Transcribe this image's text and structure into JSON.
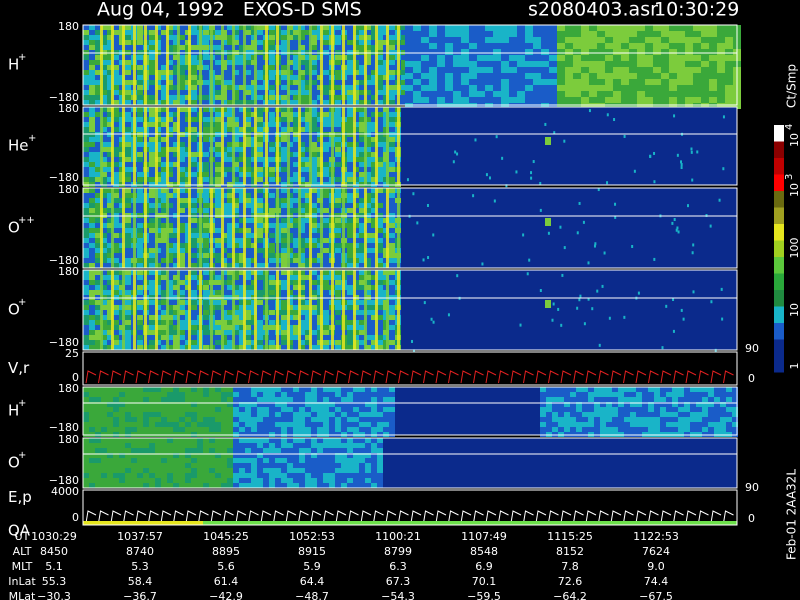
{
  "header": {
    "title": "Aug 04, 1992   EXOS-D SMS",
    "file": "s2080403.asr",
    "time": "10:30:29"
  },
  "panels": [
    {
      "ion": "H",
      "charge": "+",
      "top_tick": "180",
      "bottom_tick": "−180"
    },
    {
      "ion": "He",
      "charge": "+",
      "top_tick": "180",
      "bottom_tick": "−180"
    },
    {
      "ion": "O",
      "charge": "++",
      "top_tick": "180",
      "bottom_tick": "−180"
    },
    {
      "ion": "O",
      "charge": "+",
      "top_tick": "180",
      "bottom_tick": "−180"
    },
    {
      "ion": "V,r",
      "top_tick": "25",
      "bottom_tick": "0",
      "right_top": "90",
      "right_bottom": "0"
    },
    {
      "ion": "H",
      "charge": "+",
      "top_tick": "180",
      "bottom_tick": "−180"
    },
    {
      "ion": "O",
      "charge": "+",
      "top_tick": "180",
      "bottom_tick": "−180"
    },
    {
      "ion": "E,p",
      "ion2": "QA",
      "top_tick": "4000",
      "bottom_tick": "0",
      "right_top": "90",
      "right_bottom": "0"
    }
  ],
  "colorbar": {
    "unit": "Ct/Smp",
    "labels": [
      {
        "base": "10",
        "exp": "4"
      },
      {
        "base": "10",
        "exp": "3"
      },
      {
        "base": "100"
      },
      {
        "base": "10"
      },
      {
        "base": "1"
      }
    ]
  },
  "table": {
    "rows": [
      {
        "label": "UT",
        "values": [
          "1030:29",
          "1037:57",
          "1045:25",
          "1052:53",
          "1100:21",
          "1107:49",
          "1115:25",
          "1122:53"
        ]
      },
      {
        "label": "ALT",
        "values": [
          "8450",
          "8740",
          "8895",
          "8915",
          "8799",
          "8548",
          "8152",
          "7624"
        ]
      },
      {
        "label": "MLT",
        "values": [
          "5.1",
          "5.3",
          "5.6",
          "5.9",
          "6.3",
          "6.9",
          "7.8",
          "9.0"
        ]
      },
      {
        "label": "InLat",
        "values": [
          "55.3",
          "58.4",
          "61.4",
          "64.4",
          "67.3",
          "70.1",
          "72.6",
          "74.4"
        ]
      },
      {
        "label": "MLat",
        "values": [
          "−30.3",
          "−36.7",
          "−42.9",
          "−48.7",
          "−54.3",
          "−59.5",
          "−64.2",
          "−67.5"
        ]
      }
    ]
  },
  "footer": "Feb-01 2AA32L"
}
